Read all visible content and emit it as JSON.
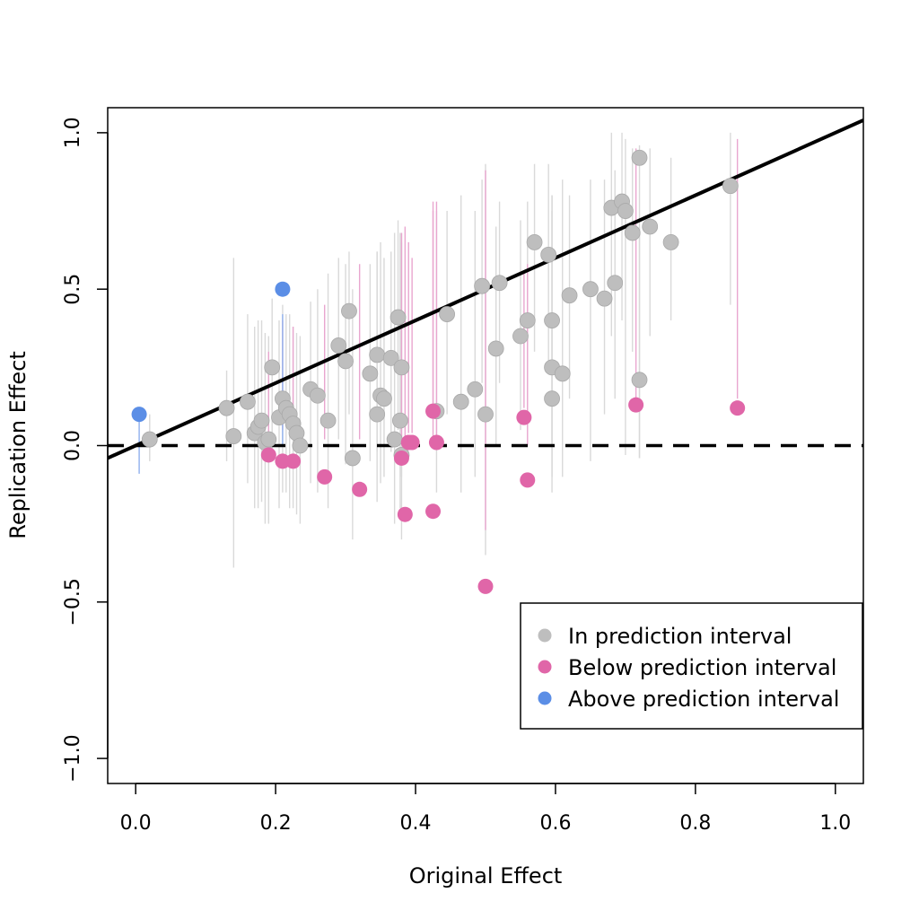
{
  "chart_data": {
    "type": "scatter",
    "xlabel": "Original Effect",
    "ylabel": "Replication Effect",
    "xlim": [
      -0.04,
      1.04
    ],
    "ylim": [
      -1.08,
      1.08
    ],
    "x_ticks": [
      0.0,
      0.2,
      0.4,
      0.6,
      0.8,
      1.0
    ],
    "x_tick_labels": [
      "0.0",
      "0.2",
      "0.4",
      "0.6",
      "0.8",
      "1.0"
    ],
    "y_ticks": [
      -1.0,
      -0.5,
      0.0,
      0.5,
      1.0
    ],
    "y_tick_labels": [
      "−1.0",
      "−0.5",
      "0.0",
      "0.5",
      "1.0"
    ],
    "grid": false,
    "legend_position": "bottom-right",
    "colors": {
      "in": "#bebebe",
      "below": "#e066a8",
      "above": "#5b8ee6",
      "in_interval": "#d9d9d9",
      "below_interval": "#e9a6cf",
      "above_interval": "#8fb0ee"
    },
    "reference_lines": [
      {
        "kind": "diagonal",
        "style": "solid",
        "points": [
          [
            -0.04,
            -0.04
          ],
          [
            1.04,
            1.04
          ]
        ]
      },
      {
        "kind": "zero",
        "style": "dashed",
        "points": [
          [
            -0.04,
            0.0
          ],
          [
            1.04,
            0.0
          ]
        ]
      }
    ],
    "series": [
      {
        "name": "In prediction interval",
        "key": "in",
        "points": [
          {
            "x": 0.02,
            "y": 0.02,
            "lo": -0.05,
            "hi": 0.1
          },
          {
            "x": 0.13,
            "y": 0.12,
            "lo": -0.05,
            "hi": 0.24
          },
          {
            "x": 0.14,
            "y": 0.03,
            "lo": -0.39,
            "hi": 0.6
          },
          {
            "x": 0.16,
            "y": 0.14,
            "lo": -0.12,
            "hi": 0.42
          },
          {
            "x": 0.17,
            "y": 0.04,
            "lo": -0.2,
            "hi": 0.38
          },
          {
            "x": 0.175,
            "y": 0.06,
            "lo": -0.2,
            "hi": 0.4
          },
          {
            "x": 0.18,
            "y": 0.08,
            "lo": -0.18,
            "hi": 0.4
          },
          {
            "x": 0.185,
            "y": 0.01,
            "lo": -0.25,
            "hi": 0.36
          },
          {
            "x": 0.19,
            "y": 0.02,
            "lo": -0.25,
            "hi": 0.35
          },
          {
            "x": 0.195,
            "y": 0.25,
            "lo": -0.05,
            "hi": 0.47
          },
          {
            "x": 0.205,
            "y": 0.09,
            "lo": -0.2,
            "hi": 0.4
          },
          {
            "x": 0.21,
            "y": 0.15,
            "lo": -0.15,
            "hi": 0.45
          },
          {
            "x": 0.215,
            "y": 0.12,
            "lo": -0.15,
            "hi": 0.42
          },
          {
            "x": 0.22,
            "y": 0.1,
            "lo": -0.2,
            "hi": 0.42
          },
          {
            "x": 0.225,
            "y": 0.07,
            "lo": -0.2,
            "hi": 0.38
          },
          {
            "x": 0.23,
            "y": 0.04,
            "lo": -0.22,
            "hi": 0.36
          },
          {
            "x": 0.235,
            "y": 0.0,
            "lo": -0.25,
            "hi": 0.35
          },
          {
            "x": 0.25,
            "y": 0.18,
            "lo": -0.12,
            "hi": 0.46
          },
          {
            "x": 0.26,
            "y": 0.16,
            "lo": -0.15,
            "hi": 0.5
          },
          {
            "x": 0.275,
            "y": 0.08,
            "lo": -0.2,
            "hi": 0.55
          },
          {
            "x": 0.29,
            "y": 0.32,
            "lo": 0.02,
            "hi": 0.6
          },
          {
            "x": 0.3,
            "y": 0.27,
            "lo": -0.06,
            "hi": 0.58
          },
          {
            "x": 0.305,
            "y": 0.43,
            "lo": 0.1,
            "hi": 0.62
          },
          {
            "x": 0.31,
            "y": -0.04,
            "lo": -0.3,
            "hi": 0.5
          },
          {
            "x": 0.335,
            "y": 0.23,
            "lo": -0.05,
            "hi": 0.58
          },
          {
            "x": 0.345,
            "y": 0.29,
            "lo": -0.02,
            "hi": 0.62
          },
          {
            "x": 0.345,
            "y": 0.1,
            "lo": -0.18,
            "hi": 0.62
          },
          {
            "x": 0.35,
            "y": 0.16,
            "lo": -0.12,
            "hi": 0.65
          },
          {
            "x": 0.355,
            "y": 0.15,
            "lo": -0.1,
            "hi": 0.6
          },
          {
            "x": 0.365,
            "y": 0.28,
            "lo": -0.02,
            "hi": 0.62
          },
          {
            "x": 0.37,
            "y": 0.02,
            "lo": -0.25,
            "hi": 0.68
          },
          {
            "x": 0.375,
            "y": 0.41,
            "lo": 0.05,
            "hi": 0.72
          },
          {
            "x": 0.378,
            "y": 0.08,
            "lo": -0.2,
            "hi": 0.68
          },
          {
            "x": 0.38,
            "y": 0.25,
            "lo": -0.1,
            "hi": 0.68
          },
          {
            "x": 0.38,
            "y": -0.03,
            "lo": -0.3,
            "hi": 0.65
          },
          {
            "x": 0.43,
            "y": 0.11,
            "lo": -0.15,
            "hi": 0.75
          },
          {
            "x": 0.445,
            "y": 0.42,
            "lo": 0.1,
            "hi": 0.75
          },
          {
            "x": 0.465,
            "y": 0.14,
            "lo": -0.15,
            "hi": 0.8
          },
          {
            "x": 0.485,
            "y": 0.18,
            "lo": -0.1,
            "hi": 0.75
          },
          {
            "x": 0.495,
            "y": 0.51,
            "lo": 0.2,
            "hi": 0.85
          },
          {
            "x": 0.5,
            "y": 0.1,
            "lo": -0.35,
            "hi": 0.9
          },
          {
            "x": 0.515,
            "y": 0.31,
            "lo": 0.0,
            "hi": 0.7
          },
          {
            "x": 0.52,
            "y": 0.52,
            "lo": 0.2,
            "hi": 0.78
          },
          {
            "x": 0.55,
            "y": 0.35,
            "lo": 0.05,
            "hi": 0.72
          },
          {
            "x": 0.56,
            "y": 0.4,
            "lo": 0.1,
            "hi": 0.78
          },
          {
            "x": 0.57,
            "y": 0.65,
            "lo": 0.3,
            "hi": 0.9
          },
          {
            "x": 0.59,
            "y": 0.61,
            "lo": 0.25,
            "hi": 0.9
          },
          {
            "x": 0.595,
            "y": 0.4,
            "lo": 0.0,
            "hi": 0.75
          },
          {
            "x": 0.595,
            "y": 0.25,
            "lo": -0.1,
            "hi": 0.8
          },
          {
            "x": 0.595,
            "y": 0.15,
            "lo": -0.15,
            "hi": 0.8
          },
          {
            "x": 0.61,
            "y": 0.23,
            "lo": -0.1,
            "hi": 0.85
          },
          {
            "x": 0.62,
            "y": 0.48,
            "lo": 0.15,
            "hi": 0.8
          },
          {
            "x": 0.65,
            "y": 0.5,
            "lo": -0.05,
            "hi": 0.85
          },
          {
            "x": 0.67,
            "y": 0.47,
            "lo": 0.1,
            "hi": 0.85
          },
          {
            "x": 0.68,
            "y": 0.76,
            "lo": 0.35,
            "hi": 1.0
          },
          {
            "x": 0.685,
            "y": 0.52,
            "lo": 0.15,
            "hi": 0.88
          },
          {
            "x": 0.695,
            "y": 0.78,
            "lo": 0.4,
            "hi": 1.0
          },
          {
            "x": 0.7,
            "y": 0.75,
            "lo": -0.03,
            "hi": 0.98
          },
          {
            "x": 0.71,
            "y": 0.68,
            "lo": 0.3,
            "hi": 0.95
          },
          {
            "x": 0.72,
            "y": 0.92,
            "lo": -0.04,
            "hi": 0.96
          },
          {
            "x": 0.72,
            "y": 0.21,
            "lo": -0.04,
            "hi": 0.7
          },
          {
            "x": 0.735,
            "y": 0.7,
            "lo": 0.35,
            "hi": 0.95
          },
          {
            "x": 0.765,
            "y": 0.65,
            "lo": 0.4,
            "hi": 0.92
          },
          {
            "x": 0.85,
            "y": 0.83,
            "lo": 0.45,
            "hi": 1.0
          }
        ]
      },
      {
        "name": "Below prediction interval",
        "key": "below",
        "points": [
          {
            "x": 0.19,
            "y": -0.03,
            "lo": 0.0,
            "hi": 0.3
          },
          {
            "x": 0.21,
            "y": -0.05,
            "lo": 0.05,
            "hi": 0.4
          },
          {
            "x": 0.225,
            "y": -0.05,
            "lo": 0.05,
            "hi": 0.38
          },
          {
            "x": 0.27,
            "y": -0.1,
            "lo": 0.02,
            "hi": 0.45
          },
          {
            "x": 0.32,
            "y": -0.14,
            "lo": 0.02,
            "hi": 0.58
          },
          {
            "x": 0.38,
            "y": -0.04,
            "lo": 0.02,
            "hi": 0.68
          },
          {
            "x": 0.385,
            "y": -0.22,
            "lo": 0.03,
            "hi": 0.7
          },
          {
            "x": 0.39,
            "y": 0.01,
            "lo": 0.04,
            "hi": 0.65
          },
          {
            "x": 0.395,
            "y": 0.01,
            "lo": 0.04,
            "hi": 0.6
          },
          {
            "x": 0.425,
            "y": 0.11,
            "lo": 0.13,
            "hi": 0.78
          },
          {
            "x": 0.425,
            "y": -0.21,
            "lo": 0.03,
            "hi": 0.75
          },
          {
            "x": 0.43,
            "y": 0.01,
            "lo": 0.03,
            "hi": 0.78
          },
          {
            "x": 0.5,
            "y": -0.45,
            "lo": -0.27,
            "hi": 0.88
          },
          {
            "x": 0.555,
            "y": 0.09,
            "lo": 0.12,
            "hi": 0.55
          },
          {
            "x": 0.56,
            "y": -0.11,
            "lo": 0.0,
            "hi": 0.58
          },
          {
            "x": 0.715,
            "y": 0.13,
            "lo": 0.15,
            "hi": 0.95
          },
          {
            "x": 0.86,
            "y": 0.12,
            "lo": 0.15,
            "hi": 0.98
          }
        ]
      },
      {
        "name": "Above prediction interval",
        "key": "above",
        "points": [
          {
            "x": 0.005,
            "y": 0.1,
            "lo": -0.09,
            "hi": 0.08
          },
          {
            "x": 0.21,
            "y": 0.5,
            "lo": 0.0,
            "hi": 0.42
          }
        ]
      }
    ]
  }
}
